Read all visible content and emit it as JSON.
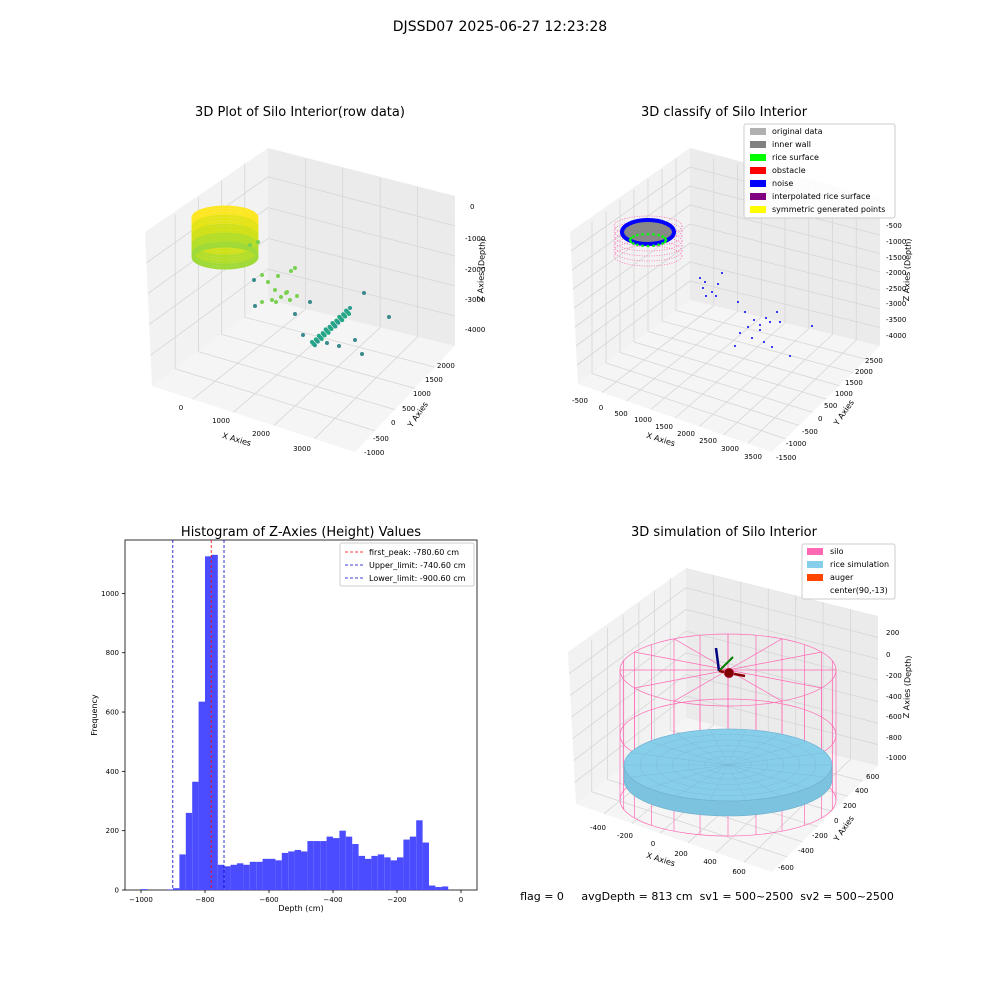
{
  "figure": {
    "suptitle": "DJSSD07 2025-06-27 12:23:28",
    "status_line": "flag = 0     avgDepth = 813 cm  sv1 = 500~2500  sv2 = 500~2500"
  },
  "colors": {
    "histogram_bar": "#4b4bff",
    "first_peak_line": "#ff0000",
    "limit_lines": "#0000cc",
    "grey": "#b0b0b0",
    "inner_wall": "#808080",
    "rice_surface": "#00ff00",
    "obstacle": "#ff0000",
    "noise": "#0000ff",
    "interpolated": "#800080",
    "symmetric": "#ffff00",
    "silo": "#ff69b4",
    "rice_sim": "#87ceeb",
    "auger": "#ff4500"
  },
  "chart_data": [
    {
      "type": "scatter",
      "projection": "3d",
      "title": "3D Plot of Silo Interior(row data)",
      "xlabel": "X Axies",
      "ylabel": "Y Axies",
      "zlabel": "Z Axies (Depth)",
      "x_ticks": [
        "0",
        "1000",
        "2000",
        "3000"
      ],
      "y_ticks": [
        "-1000",
        "-500",
        "0",
        "500",
        "1000",
        "1500",
        "2000"
      ],
      "z_ticks": [
        "0",
        "-1000",
        "-2000",
        "-3000",
        "-4000"
      ],
      "grid": true,
      "clusters": [
        {
          "x": 0,
          "y": 0,
          "z": -800,
          "color": "#d9e021",
          "shape": "ring"
        },
        {
          "x": 1200,
          "y": 300,
          "z": -1800,
          "color": "#7ad151",
          "shape": "scatter"
        },
        {
          "x": 2200,
          "y": 600,
          "z": -2800,
          "color": "#22a884",
          "shape": "line"
        }
      ]
    },
    {
      "type": "scatter",
      "projection": "3d",
      "title": "3D classify of Silo Interior",
      "xlabel": "X Axies",
      "ylabel": "Y Axies",
      "zlabel": "Z Axies (Depth)",
      "x_ticks": [
        "-500",
        "0",
        "500",
        "1000",
        "1500",
        "2000",
        "2500",
        "3000",
        "3500"
      ],
      "y_ticks": [
        "-1500",
        "-1000",
        "-500",
        "0",
        "500",
        "1000",
        "1500",
        "2000",
        "2500"
      ],
      "z_ticks": [
        "-500",
        "-1000",
        "-1500",
        "-2000",
        "-2500",
        "-3000",
        "-3500",
        "-4000"
      ],
      "grid": true,
      "legend": {
        "position": "upper right",
        "entries": [
          "original data",
          "inner wall",
          "rice surface",
          "obstacle",
          "noise",
          "interpolated rice surface",
          "symmetric generated points"
        ]
      }
    },
    {
      "type": "bar",
      "title": "Histogram of Z-Axies (Height) Values",
      "xlabel": "Depth (cm)",
      "ylabel": "Frequency",
      "xlim": [
        -1050,
        50
      ],
      "ylim": [
        0,
        1180
      ],
      "x_ticks": [
        -1000,
        -800,
        -600,
        -400,
        -200,
        0
      ],
      "y_ticks": [
        0,
        200,
        400,
        600,
        800,
        1000
      ],
      "bin_width": 20,
      "bin_start": -1000,
      "values": [
        3,
        0,
        0,
        0,
        2,
        6,
        120,
        260,
        365,
        635,
        1125,
        1130,
        85,
        80,
        85,
        90,
        85,
        95,
        95,
        105,
        105,
        100,
        125,
        130,
        135,
        130,
        165,
        165,
        165,
        180,
        175,
        200,
        180,
        155,
        115,
        105,
        115,
        120,
        110,
        100,
        110,
        170,
        180,
        235,
        160,
        15,
        10,
        12
      ],
      "vlines": [
        {
          "x": -780.6,
          "label": "first_peak: -780.60 cm",
          "style": "dashed",
          "color": "#ff0000"
        },
        {
          "x": -740.6,
          "label": "Upper_limit: -740.60 cm",
          "style": "dashed",
          "color": "#0000cc"
        },
        {
          "x": -900.6,
          "label": "Lower_limit: -900.60 cm",
          "style": "dashed",
          "color": "#0000cc"
        }
      ],
      "legend": {
        "position": "upper right"
      }
    },
    {
      "type": "scatter",
      "projection": "3d",
      "title": "3D simulation of Silo Interior",
      "xlabel": "X Axies",
      "ylabel": "Y Axies",
      "zlabel": "Z Axies (Depth)",
      "x_ticks": [
        "-400",
        "-200",
        "0",
        "200",
        "400",
        "600"
      ],
      "y_ticks": [
        "-600",
        "-400",
        "-200",
        "0",
        "200",
        "400",
        "600"
      ],
      "z_ticks": [
        "200",
        "0",
        "-200",
        "-400",
        "-600",
        "-800",
        "-1000"
      ],
      "grid": true,
      "legend": {
        "position": "upper right",
        "entries": [
          "silo",
          "rice simulation",
          "auger",
          "center(90,-13)"
        ]
      }
    }
  ]
}
